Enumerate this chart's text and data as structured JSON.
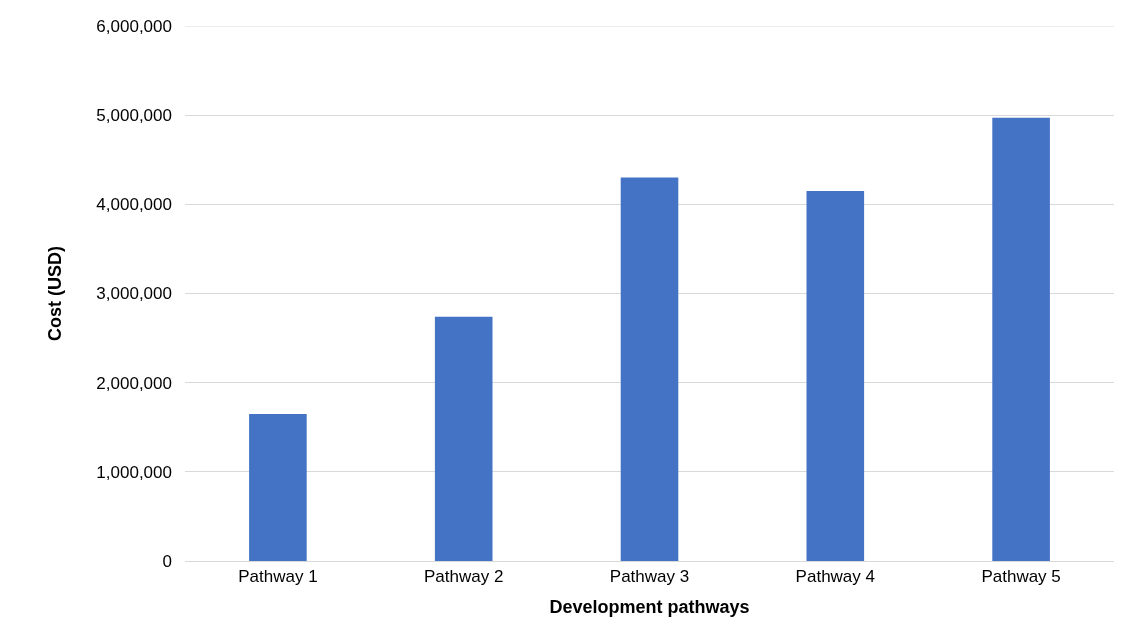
{
  "chart_data": {
    "type": "bar",
    "xlabel": "Development pathways",
    "ylabel": "Cost (USD)",
    "categories": [
      "Pathway 1",
      "Pathway 2",
      "Pathway 3",
      "Pathway 4",
      "Pathway 5"
    ],
    "values": [
      1650000,
      2740000,
      4300000,
      4150000,
      4970000
    ],
    "color": "#4472c4",
    "ylim": [
      0,
      6000000
    ],
    "yticks": [
      {
        "value": 0,
        "label": "0"
      },
      {
        "value": 1000000,
        "label": "1,000,000"
      },
      {
        "value": 2000000,
        "label": "2,000,000"
      },
      {
        "value": 3000000,
        "label": "3,000,000"
      },
      {
        "value": 4000000,
        "label": "4,000,000"
      },
      {
        "value": 5000000,
        "label": "5,000,000"
      },
      {
        "value": 6000000,
        "label": "6,000,000"
      }
    ],
    "grid": "y"
  }
}
